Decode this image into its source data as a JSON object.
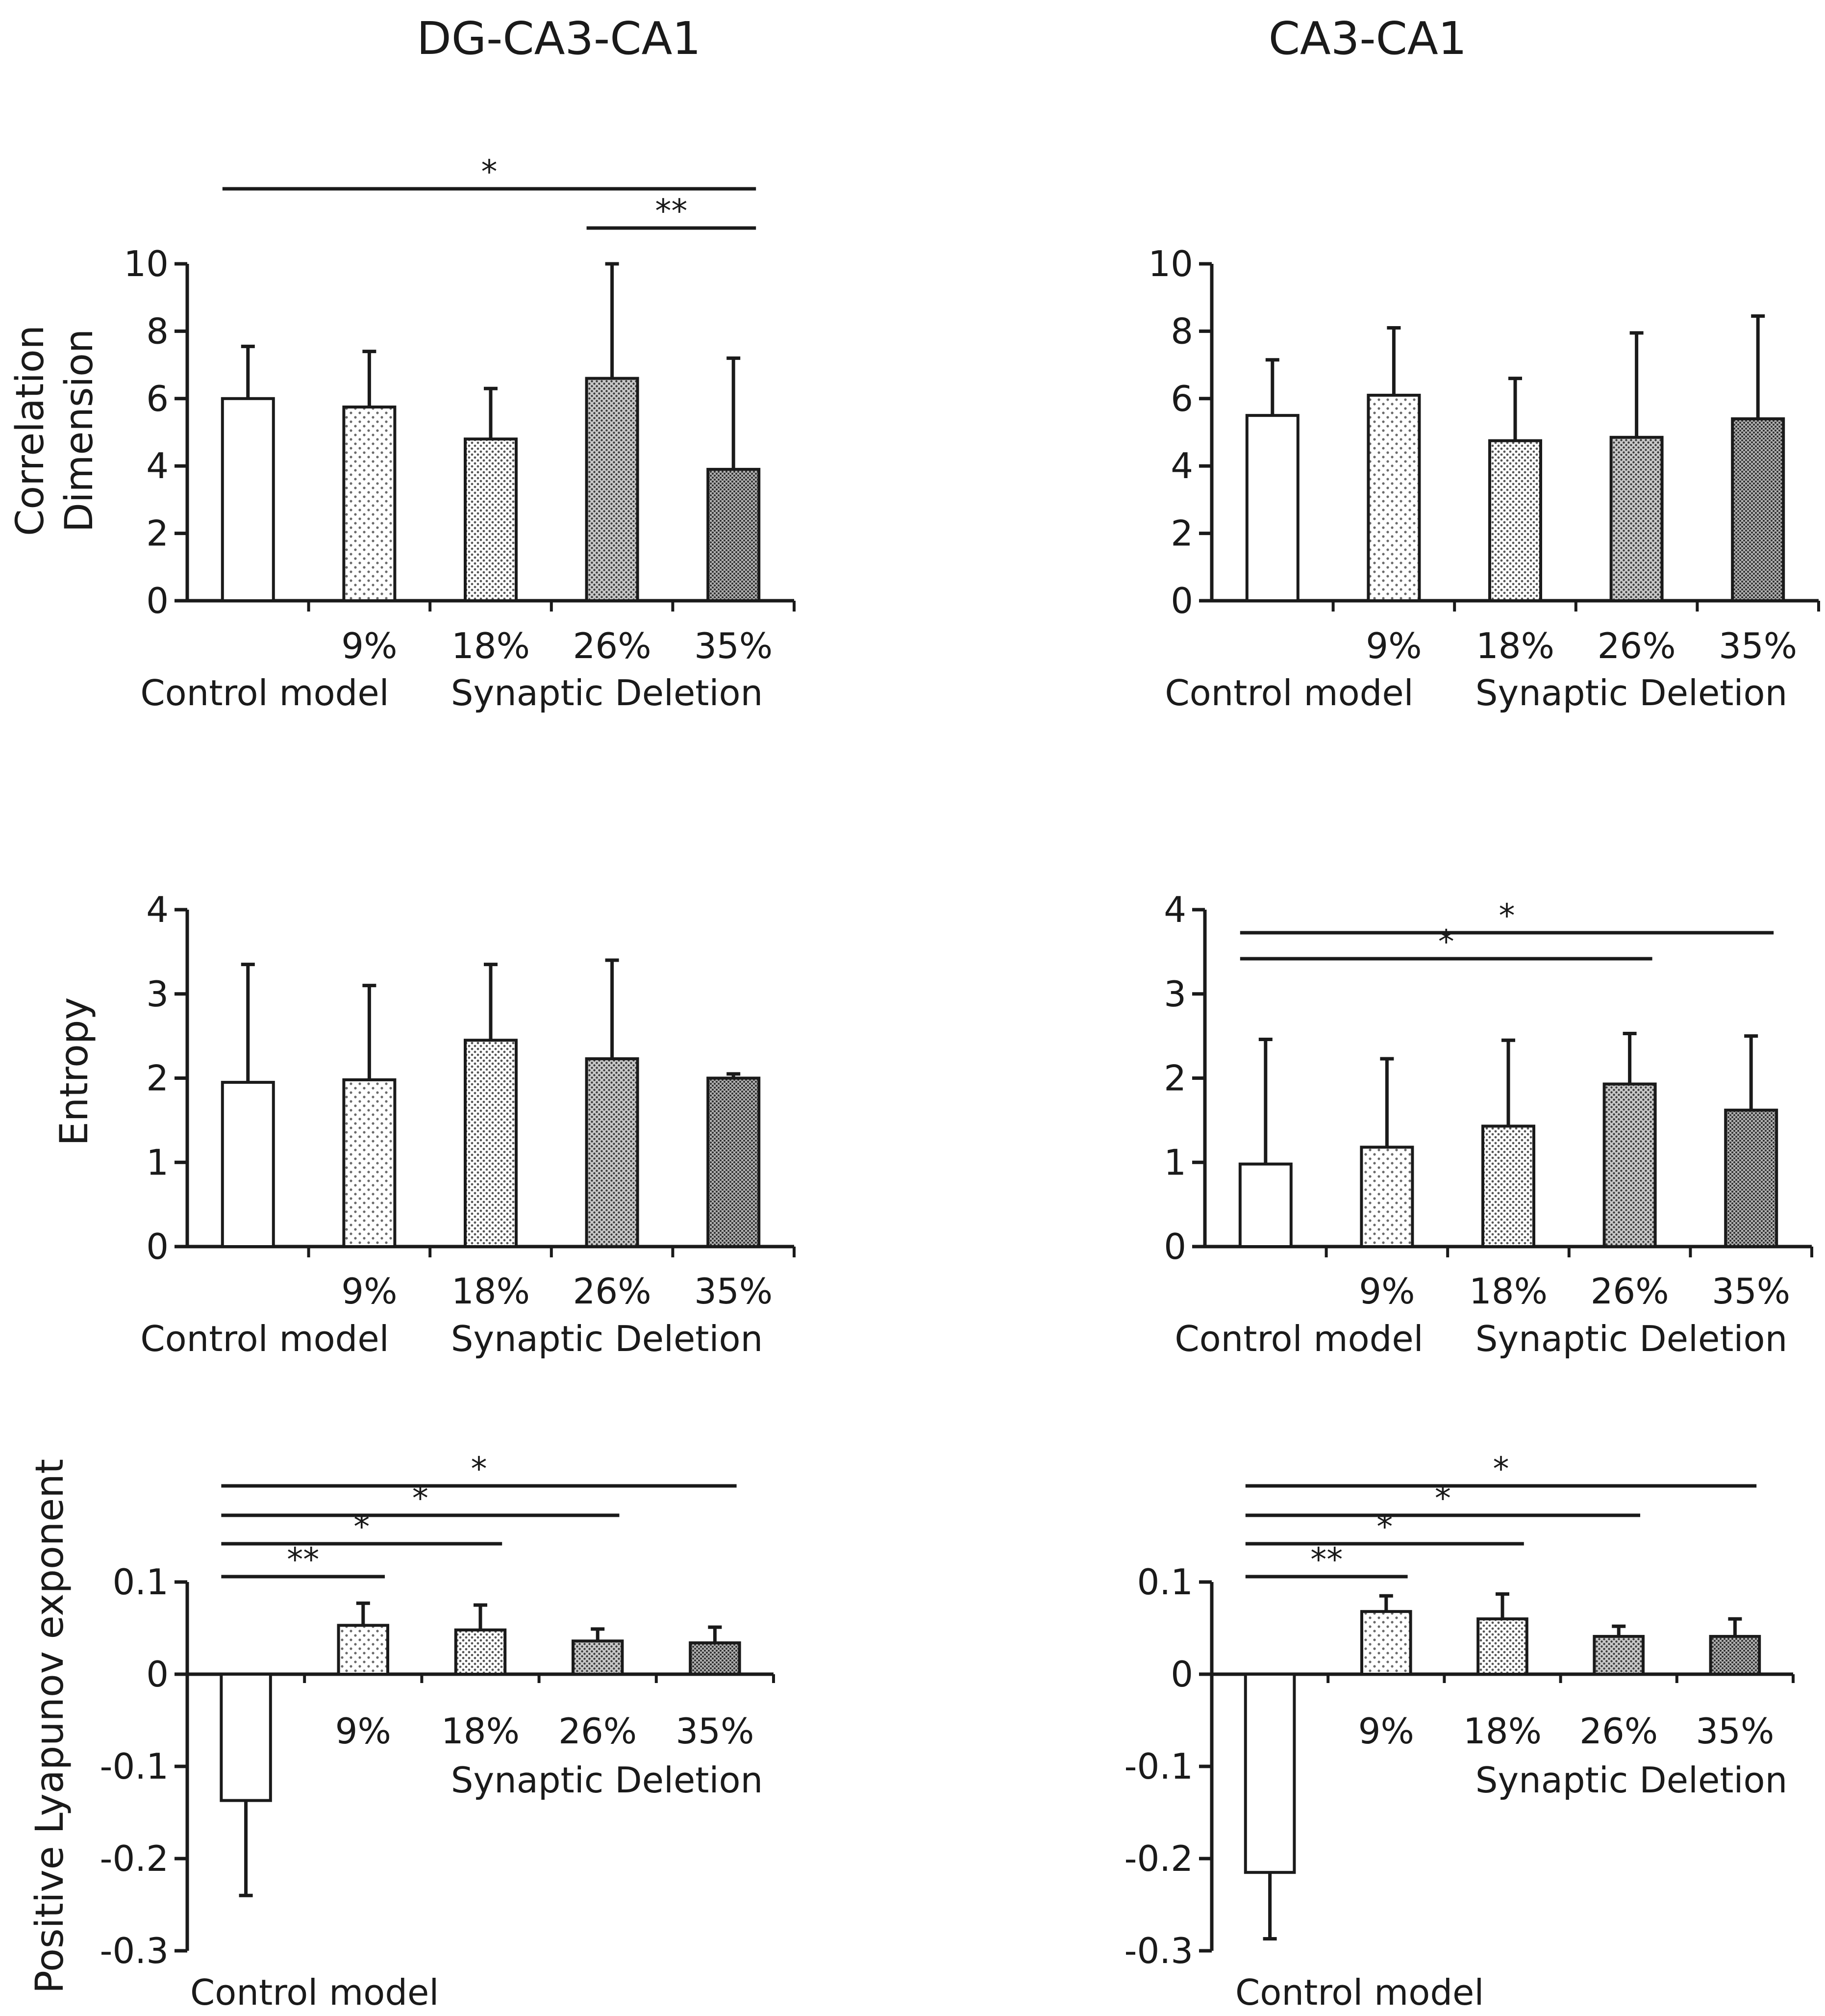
{
  "columns": [
    "DG-CA3-CA1",
    "CA3-CA1"
  ],
  "group_labels": {
    "control": "Control model",
    "deletion": "Synaptic Deletion"
  },
  "y_labels": {
    "corr_line1": "Correlation",
    "corr_line2": "Dimension",
    "entropy": "Entropy",
    "lyapunov": "Positive Lyapunov exponent"
  },
  "chart_data": [
    {
      "type": "bar",
      "title": "DG-CA3-CA1",
      "ylabel": "Correlation Dimension",
      "categories": [
        "Control model",
        "9%",
        "18%",
        "26%",
        "35%"
      ],
      "values": [
        6.0,
        5.75,
        4.8,
        6.6,
        3.9
      ],
      "errors": [
        1.55,
        1.65,
        1.5,
        3.4,
        3.3
      ],
      "ylim": [
        0,
        10
      ],
      "yticks": [
        "0",
        "2",
        "4",
        "6",
        "8",
        "10"
      ],
      "significance": [
        {
          "from": 0,
          "to": 4,
          "label": "*"
        },
        {
          "from": 3,
          "to": 4,
          "label": "**"
        }
      ]
    },
    {
      "type": "bar",
      "title": "CA3-CA1",
      "ylabel": "Correlation Dimension",
      "categories": [
        "Control model",
        "9%",
        "18%",
        "26%",
        "35%"
      ],
      "values": [
        5.5,
        6.1,
        4.75,
        4.85,
        5.4
      ],
      "errors": [
        1.65,
        2.0,
        1.85,
        3.1,
        3.05
      ],
      "ylim": [
        0,
        10
      ],
      "yticks": [
        "0",
        "2",
        "4",
        "6",
        "8",
        "10"
      ],
      "significance": []
    },
    {
      "type": "bar",
      "title": "DG-CA3-CA1",
      "ylabel": "Entropy",
      "categories": [
        "Control model",
        "9%",
        "18%",
        "26%",
        "35%"
      ],
      "values": [
        1.95,
        1.98,
        2.45,
        2.23,
        2.0
      ],
      "errors": [
        1.4,
        1.12,
        0.9,
        1.17,
        0.05
      ],
      "ylim": [
        0,
        4
      ],
      "yticks": [
        "0",
        "1",
        "2",
        "3",
        "4"
      ],
      "significance": []
    },
    {
      "type": "bar",
      "title": "CA3-CA1",
      "ylabel": "Entropy",
      "categories": [
        "Control model",
        "9%",
        "18%",
        "26%",
        "35%"
      ],
      "values": [
        0.98,
        1.18,
        1.43,
        1.93,
        1.62
      ],
      "errors": [
        1.48,
        1.05,
        1.02,
        0.6,
        0.88
      ],
      "ylim": [
        0,
        4
      ],
      "yticks": [
        "0",
        "1",
        "2",
        "3",
        "4"
      ],
      "significance": [
        {
          "from": 0,
          "to": 3,
          "label": "*"
        },
        {
          "from": 0,
          "to": 4,
          "label": "*"
        }
      ]
    },
    {
      "type": "bar",
      "title": "DG-CA3-CA1",
      "ylabel": "Positive Lyapunov exponent",
      "categories": [
        "Control model",
        "9%",
        "18%",
        "26%",
        "35%"
      ],
      "values": [
        -0.137,
        0.053,
        0.048,
        0.036,
        0.034
      ],
      "errors": [
        0.103,
        0.024,
        0.027,
        0.013,
        0.017
      ],
      "ylim": [
        -0.3,
        0.1
      ],
      "yticks": [
        "-0.3",
        "-0.2",
        "-0.1",
        "0",
        "0.1"
      ],
      "significance": [
        {
          "from": 0,
          "to": 1,
          "label": "**"
        },
        {
          "from": 0,
          "to": 2,
          "label": "*"
        },
        {
          "from": 0,
          "to": 3,
          "label": "*"
        },
        {
          "from": 0,
          "to": 4,
          "label": "*"
        }
      ]
    },
    {
      "type": "bar",
      "title": "CA3-CA1",
      "ylabel": "Positive Lyapunov exponent",
      "categories": [
        "Control model",
        "9%",
        "18%",
        "26%",
        "35%"
      ],
      "values": [
        -0.215,
        0.068,
        0.06,
        0.041,
        0.041
      ],
      "errors": [
        0.072,
        0.017,
        0.027,
        0.011,
        0.019
      ],
      "ylim": [
        -0.3,
        0.1
      ],
      "yticks": [
        "-0.3",
        "-0.2",
        "-0.1",
        "0",
        "0.1"
      ],
      "significance": [
        {
          "from": 0,
          "to": 1,
          "label": "**"
        },
        {
          "from": 0,
          "to": 2,
          "label": "*"
        },
        {
          "from": 0,
          "to": 3,
          "label": "*"
        },
        {
          "from": 0,
          "to": 4,
          "label": "*"
        }
      ]
    }
  ],
  "colors": {
    "axis": "#1a1a1a",
    "bar_fill": "#ffffff",
    "dot_light": "#6a6a6a",
    "dot_mid": "#555555",
    "dot_dark": "#3a3a3a",
    "shade_mid": "#c8c8c8",
    "shade_dark": "#b0b0b0"
  }
}
